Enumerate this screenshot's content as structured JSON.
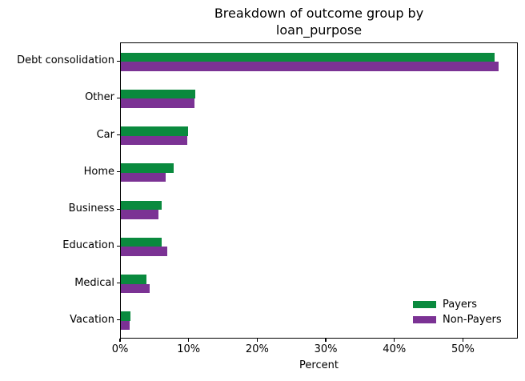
{
  "chart_data": {
    "type": "bar",
    "orientation": "horizontal",
    "title_lines": [
      "Breakdown of outcome group by",
      "loan_purpose"
    ],
    "title": "Breakdown of outcome group by loan_purpose",
    "categories": [
      "Debt consolidation",
      "Other",
      "Car",
      "Home",
      "Business",
      "Education",
      "Medical",
      "Vacation"
    ],
    "series": [
      {
        "name": "Payers",
        "color": "#0a8a3e",
        "values": [
          54.5,
          10.9,
          9.8,
          7.7,
          6.0,
          6.0,
          3.7,
          1.4
        ]
      },
      {
        "name": "Non-Payers",
        "color": "#7b3294",
        "values": [
          55.1,
          10.7,
          9.7,
          6.5,
          5.5,
          6.8,
          4.2,
          1.3
        ]
      }
    ],
    "xlabel": "Percent",
    "x_ticks": [
      {
        "value": 0,
        "label": "0%"
      },
      {
        "value": 10,
        "label": "10%"
      },
      {
        "value": 20,
        "label": "20%"
      },
      {
        "value": 30,
        "label": "30%"
      },
      {
        "value": 40,
        "label": "40%"
      },
      {
        "value": 50,
        "label": "50%"
      }
    ],
    "xlim": [
      0,
      58
    ],
    "grid": false,
    "legend": {
      "position": "lower right",
      "frame": false
    }
  }
}
